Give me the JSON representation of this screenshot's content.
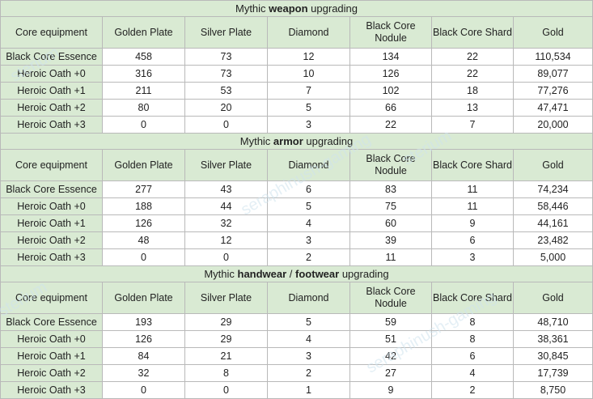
{
  "columns": [
    "Core equipment",
    "Golden Plate",
    "Silver Plate",
    "Diamond",
    "Black Core Nodule",
    "Black Core Shard",
    "Gold"
  ],
  "sections": [
    {
      "title_pre": "Mythic ",
      "title_bold": "weapon",
      "title_post": " upgrading",
      "rows": [
        [
          "Black Core Essence",
          "458",
          "73",
          "12",
          "134",
          "22",
          "110,534"
        ],
        [
          "Heroic Oath +0",
          "316",
          "73",
          "10",
          "126",
          "22",
          "89,077"
        ],
        [
          "Heroic Oath +1",
          "211",
          "53",
          "7",
          "102",
          "18",
          "77,276"
        ],
        [
          "Heroic Oath +2",
          "80",
          "20",
          "5",
          "66",
          "13",
          "47,471"
        ],
        [
          "Heroic Oath +3",
          "0",
          "0",
          "3",
          "22",
          "7",
          "20,000"
        ]
      ]
    },
    {
      "title_pre": "Mythic ",
      "title_bold": "armor",
      "title_post": " upgrading",
      "rows": [
        [
          "Black Core Essence",
          "277",
          "43",
          "6",
          "83",
          "11",
          "74,234"
        ],
        [
          "Heroic Oath +0",
          "188",
          "44",
          "5",
          "75",
          "11",
          "58,446"
        ],
        [
          "Heroic Oath +1",
          "126",
          "32",
          "4",
          "60",
          "9",
          "44,161"
        ],
        [
          "Heroic Oath +2",
          "48",
          "12",
          "3",
          "39",
          "6",
          "23,482"
        ],
        [
          "Heroic Oath +3",
          "0",
          "0",
          "2",
          "11",
          "3",
          "5,000"
        ]
      ]
    },
    {
      "title_pre": "Mythic ",
      "title_bold": "handwear",
      "title_mid": " / ",
      "title_bold2": "footwear",
      "title_post": " upgrading",
      "rows": [
        [
          "Black Core Essence",
          "193",
          "29",
          "5",
          "59",
          "8",
          "48,710"
        ],
        [
          "Heroic Oath +0",
          "126",
          "29",
          "4",
          "51",
          "8",
          "38,361"
        ],
        [
          "Heroic Oath +1",
          "84",
          "21",
          "3",
          "42",
          "6",
          "30,845"
        ],
        [
          "Heroic Oath +2",
          "32",
          "8",
          "2",
          "27",
          "4",
          "17,739"
        ],
        [
          "Heroic Oath +3",
          "0",
          "0",
          "1",
          "9",
          "2",
          "8,750"
        ]
      ]
    }
  ],
  "watermark": "seraphinush-gaming",
  "watermark_partial": "sterium"
}
